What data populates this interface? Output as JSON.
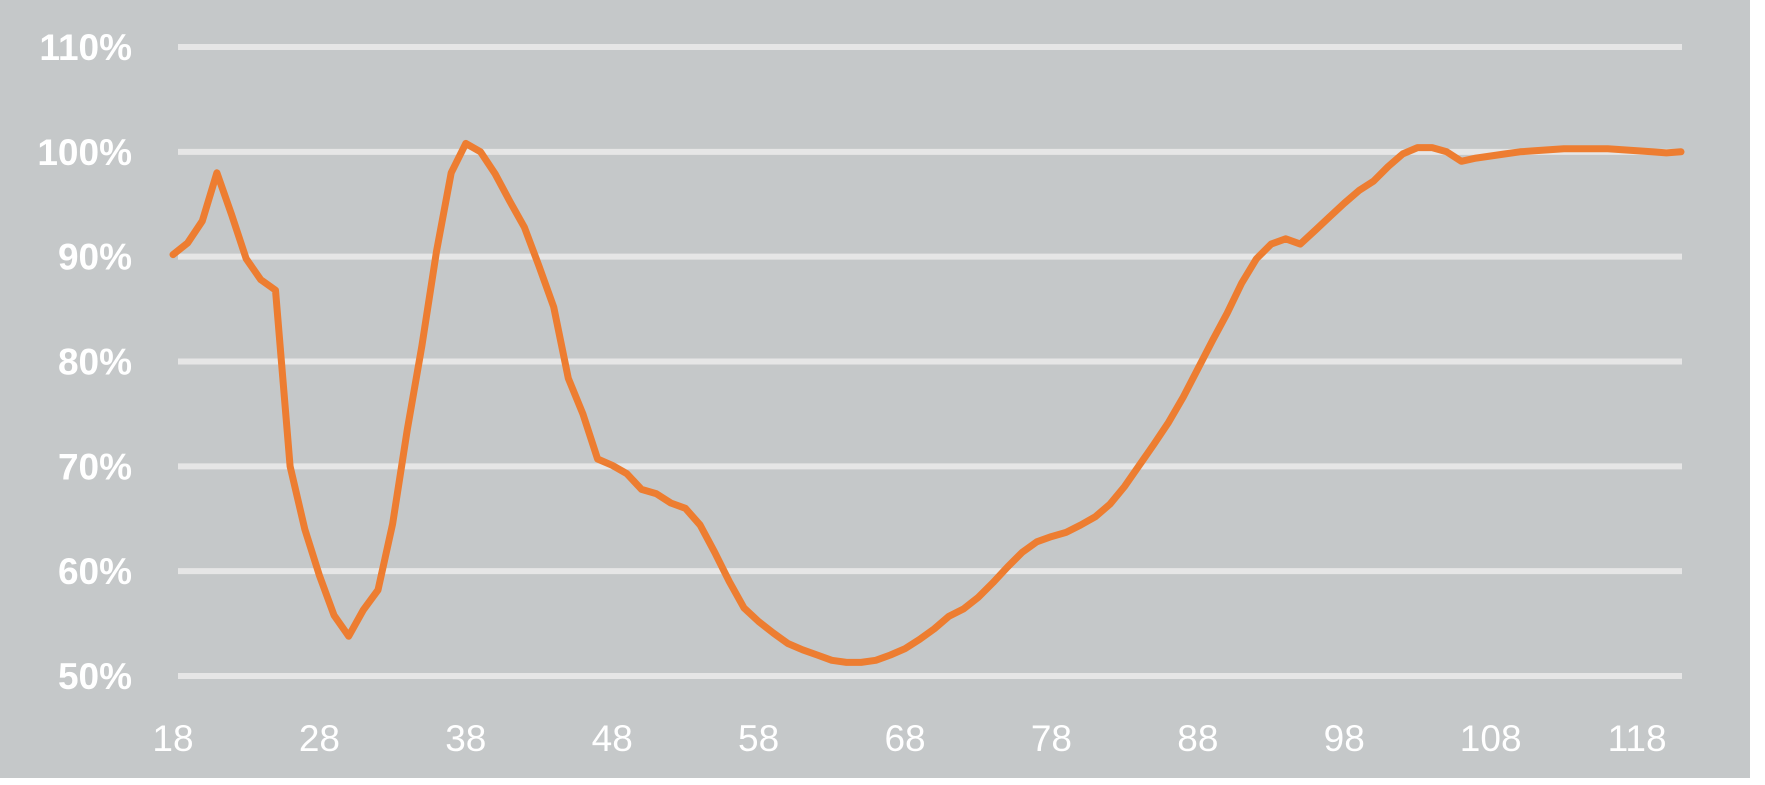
{
  "chart_data": {
    "type": "line",
    "title": "",
    "xlabel": "",
    "ylabel": "",
    "xlim": [
      18,
      121
    ],
    "ylim": [
      50,
      110
    ],
    "x_ticks": [
      18,
      28,
      38,
      48,
      58,
      68,
      78,
      88,
      98,
      108,
      118
    ],
    "x_tick_labels": [
      "18",
      "28",
      "38",
      "48",
      "58",
      "68",
      "78",
      "88",
      "98",
      "108",
      "118"
    ],
    "y_ticks": [
      50,
      60,
      70,
      80,
      90,
      100,
      110
    ],
    "y_tick_labels": [
      "50%",
      "60%",
      "70%",
      "80%",
      "90%",
      "100%",
      "110%"
    ],
    "grid": true,
    "legend": "none",
    "colors": {
      "plot_background": "#c5c8c9",
      "gridline": "#e6e6e6",
      "line": "#ed7d31",
      "tick_text": "#ffffff",
      "page_background": "#ffffff"
    },
    "series": [
      {
        "x": [
          18,
          19,
          20,
          21,
          22,
          23,
          24,
          25,
          26,
          27,
          28,
          29,
          30,
          31,
          32,
          33,
          34,
          35,
          36,
          37,
          38,
          39,
          40,
          41,
          42,
          43,
          44,
          45,
          46,
          47,
          48,
          49,
          50,
          51,
          52,
          53,
          54,
          55,
          56,
          57,
          58,
          59,
          60,
          61,
          62,
          63,
          64,
          65,
          66,
          67,
          68,
          69,
          70,
          71,
          72,
          73,
          74,
          75,
          76,
          77,
          78,
          79,
          80,
          81,
          82,
          83,
          84,
          85,
          86,
          87,
          88,
          89,
          90,
          91,
          92,
          93,
          94,
          95,
          96,
          97,
          98,
          99,
          100,
          101,
          102,
          103,
          104,
          105,
          106,
          107,
          108,
          109,
          110,
          111,
          112,
          113,
          114,
          115,
          116,
          117,
          118,
          119,
          120,
          121
        ],
        "values": [
          90.2,
          91.3,
          93.4,
          98.0,
          94.0,
          89.8,
          87.8,
          86.8,
          70.0,
          64.0,
          59.6,
          55.8,
          53.8,
          56.3,
          58.2,
          64.5,
          73.5,
          81.5,
          90.5,
          98.0,
          100.8,
          100.0,
          97.9,
          95.3,
          92.8,
          89.1,
          85.2,
          78.4,
          75.0,
          70.7,
          70.1,
          69.3,
          67.8,
          67.4,
          66.5,
          66.0,
          64.4,
          61.8,
          59.0,
          56.5,
          55.2,
          54.1,
          53.1,
          52.5,
          52.0,
          51.5,
          51.3,
          51.3,
          51.5,
          52.0,
          52.6,
          53.5,
          54.5,
          55.7,
          56.4,
          57.5,
          58.9,
          60.4,
          61.8,
          62.8,
          63.3,
          63.7,
          64.4,
          65.2,
          66.4,
          68.1,
          70.1,
          72.1,
          74.2,
          76.6,
          79.3,
          82.0,
          84.6,
          87.5,
          89.8,
          91.2,
          91.7,
          91.2,
          92.5,
          93.8,
          95.1,
          96.3,
          97.2,
          98.6,
          99.8,
          100.4,
          100.4,
          100.0,
          99.1,
          99.4,
          99.6,
          99.8,
          100.0,
          100.1,
          100.2,
          100.3,
          100.3,
          100.3,
          100.3,
          100.2,
          100.1,
          100.0,
          99.9,
          100.0
        ]
      }
    ]
  }
}
